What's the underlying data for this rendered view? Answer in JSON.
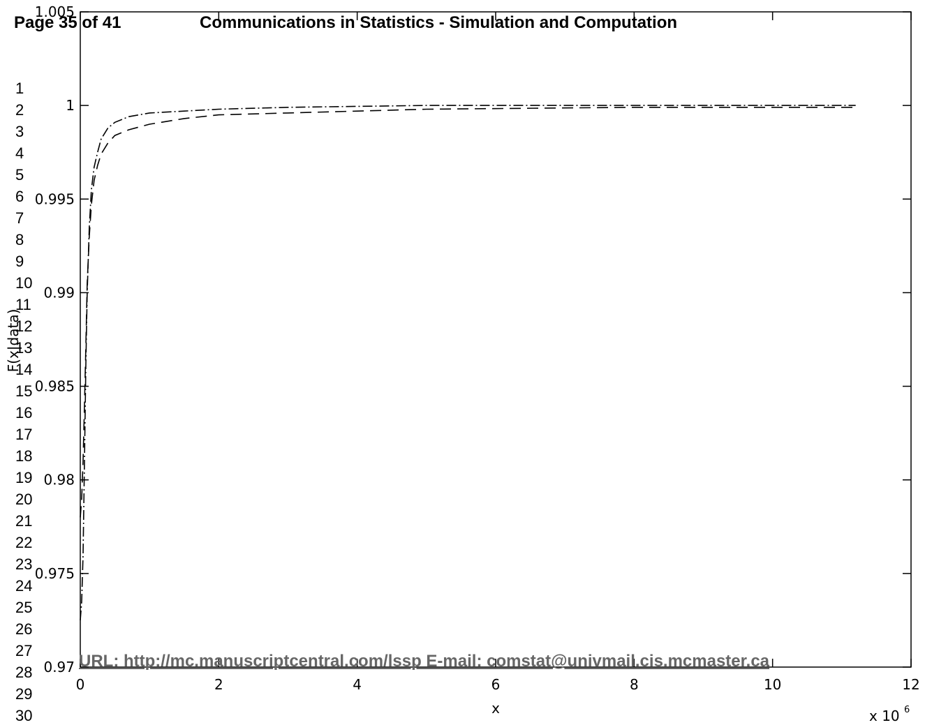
{
  "header": {
    "page_label": "Page 35 of 41",
    "journal_title": "Communications in Statistics - Simulation and Computation"
  },
  "line_numbers": [
    "1",
    "2",
    "3",
    "4",
    "5",
    "6",
    "7",
    "8",
    "9",
    "10",
    "11",
    "12",
    "13",
    "14",
    "15",
    "16",
    "17",
    "18",
    "19",
    "20",
    "21",
    "22",
    "23",
    "24",
    "25",
    "26",
    "27",
    "28",
    "29",
    "30"
  ],
  "footer": {
    "url_line": "URL: http://mc.manuscriptcentral.com/lssp E-mail:  comstat@univmail.cis.mcmaster.ca"
  },
  "chart_data": {
    "type": "line",
    "xlabel": "x",
    "ylabel": "F(x|data)",
    "x_multiplier_label": "x 10",
    "x_multiplier_exponent": "6",
    "xlim": [
      0,
      12
    ],
    "ylim": [
      0.97,
      1.005
    ],
    "x_ticks": [
      0,
      2,
      4,
      6,
      8,
      10,
      12
    ],
    "x_tick_labels": [
      "0",
      "2",
      "4",
      "6",
      "8",
      "10",
      "12"
    ],
    "y_ticks": [
      0.97,
      0.975,
      0.98,
      0.985,
      0.99,
      0.995,
      1,
      1.005
    ],
    "y_tick_labels": [
      "0.97",
      "0.975",
      "0.98",
      "0.985",
      "0.99",
      "0.995",
      "1",
      "1.005"
    ],
    "grid": false,
    "series": [
      {
        "style": "dashdot",
        "color": "#000000",
        "points": [
          [
            0.0,
            0.9725
          ],
          [
            0.02,
            0.9735
          ],
          [
            0.04,
            0.976
          ],
          [
            0.06,
            0.981
          ],
          [
            0.08,
            0.986
          ],
          [
            0.1,
            0.99
          ],
          [
            0.13,
            0.9935
          ],
          [
            0.16,
            0.9955
          ],
          [
            0.2,
            0.9967
          ],
          [
            0.25,
            0.9975
          ],
          [
            0.3,
            0.9982
          ],
          [
            0.4,
            0.9988
          ],
          [
            0.5,
            0.9991
          ],
          [
            0.7,
            0.9994
          ],
          [
            1.0,
            0.9996
          ],
          [
            1.5,
            0.9997
          ],
          [
            2.0,
            0.9998
          ],
          [
            3.0,
            0.9999
          ],
          [
            5.0,
            1.0
          ],
          [
            8.0,
            1.0
          ],
          [
            11.2,
            1.0
          ]
        ]
      },
      {
        "style": "dashed",
        "color": "#000000",
        "points": [
          [
            0.0,
            0.978
          ],
          [
            0.02,
            0.979
          ],
          [
            0.04,
            0.981
          ],
          [
            0.06,
            0.984
          ],
          [
            0.08,
            0.987
          ],
          [
            0.1,
            0.9905
          ],
          [
            0.13,
            0.993
          ],
          [
            0.16,
            0.9947
          ],
          [
            0.2,
            0.996
          ],
          [
            0.25,
            0.9968
          ],
          [
            0.3,
            0.9974
          ],
          [
            0.4,
            0.998
          ],
          [
            0.5,
            0.9984
          ],
          [
            0.7,
            0.9987
          ],
          [
            1.0,
            0.999
          ],
          [
            1.5,
            0.9993
          ],
          [
            2.0,
            0.9995
          ],
          [
            3.0,
            0.9996
          ],
          [
            5.0,
            0.9998
          ],
          [
            8.0,
            0.9999
          ],
          [
            11.2,
            0.9999
          ]
        ]
      }
    ]
  }
}
